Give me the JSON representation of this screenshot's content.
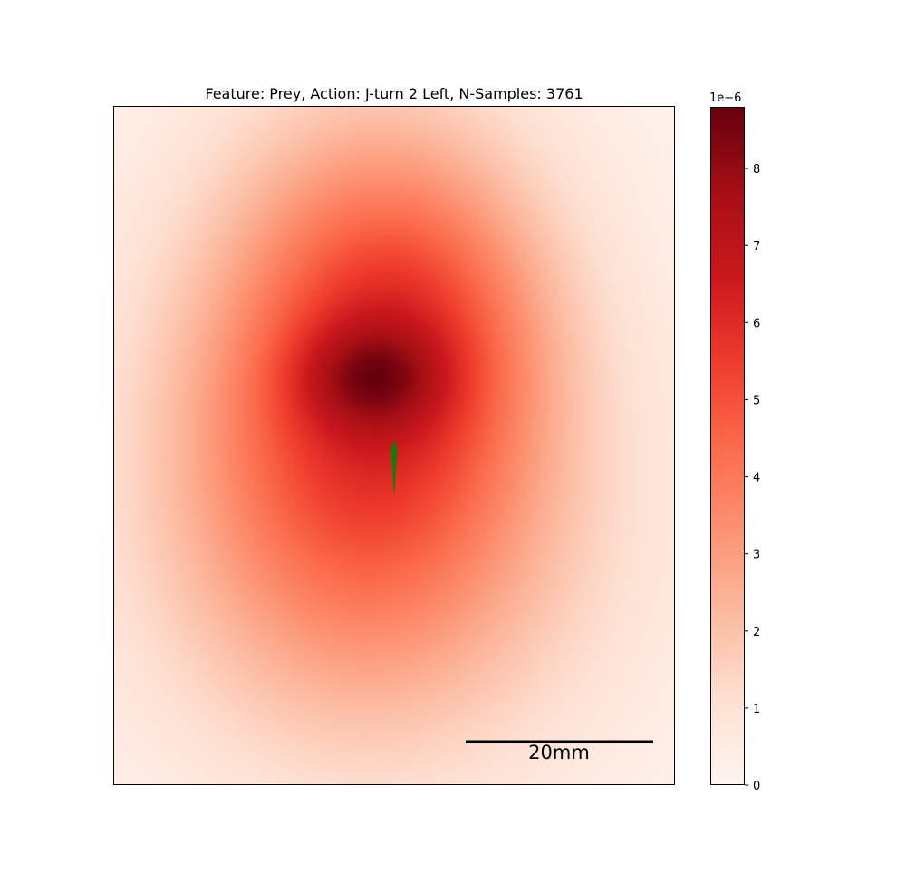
{
  "chart_data": {
    "type": "heatmap",
    "title": "Feature: Prey, Action: J-turn 2 Left, N-Samples: 3761",
    "colormap": "Reds",
    "colorbar": {
      "offset_label": "1e−6",
      "ticks": [
        0,
        1,
        2,
        3,
        4,
        5,
        6,
        7,
        8
      ],
      "tick_labels": [
        "0",
        "1",
        "2",
        "3",
        "4",
        "5",
        "6",
        "7",
        "8"
      ],
      "range": [
        0,
        8.8
      ]
    },
    "peak_value": 8.8,
    "scale_bar": {
      "label": "20mm",
      "color": "#000000"
    },
    "marker": {
      "shape": "fish-arrow",
      "color": "#1a7a0a"
    },
    "grid": false,
    "axes_ticks": false
  }
}
